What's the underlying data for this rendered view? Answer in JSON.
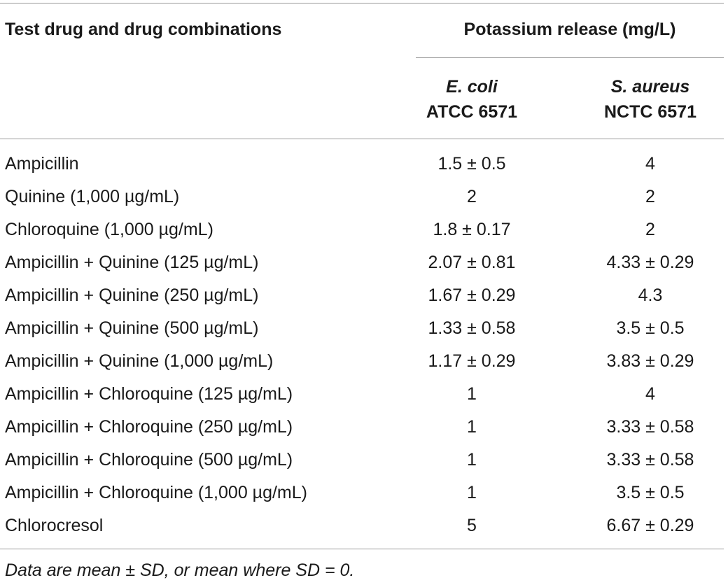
{
  "table": {
    "header": {
      "first_col": "Test drug and drug combinations",
      "group": "Potassium release (mg/L)",
      "col1_organism": "E. coli",
      "col1_strain": "ATCC 6571",
      "col2_organism": "S. aureus",
      "col2_strain": "NCTC 6571"
    },
    "rows": [
      {
        "label": "Ampicillin",
        "ecoli": "1.5 ± 0.5",
        "saureus": "4"
      },
      {
        "label": "Quinine (1,000 µg/mL)",
        "ecoli": "2",
        "saureus": "2"
      },
      {
        "label": "Chloroquine (1,000 µg/mL)",
        "ecoli": "1.8 ± 0.17",
        "saureus": "2"
      },
      {
        "label": "Ampicillin + Quinine (125 µg/mL)",
        "ecoli": "2.07 ± 0.81",
        "saureus": "4.33 ± 0.29"
      },
      {
        "label": "Ampicillin + Quinine (250 µg/mL)",
        "ecoli": "1.67 ± 0.29",
        "saureus": "4.3"
      },
      {
        "label": "Ampicillin + Quinine (500 µg/mL)",
        "ecoli": "1.33 ± 0.58",
        "saureus": "3.5 ± 0.5"
      },
      {
        "label": "Ampicillin + Quinine (1,000 µg/mL)",
        "ecoli": "1.17 ± 0.29",
        "saureus": "3.83 ± 0.29"
      },
      {
        "label": "Ampicillin + Chloroquine (125 µg/mL)",
        "ecoli": "1",
        "saureus": "4"
      },
      {
        "label": "Ampicillin + Chloroquine (250 µg/mL)",
        "ecoli": "1",
        "saureus": "3.33 ± 0.58"
      },
      {
        "label": "Ampicillin + Chloroquine (500 µg/mL)",
        "ecoli": "1",
        "saureus": "3.33 ± 0.58"
      },
      {
        "label": "Ampicillin + Chloroquine (1,000 µg/mL)",
        "ecoli": "1",
        "saureus": "3.5 ± 0.5"
      },
      {
        "label": "Chlorocresol",
        "ecoli": "5",
        "saureus": "6.67 ± 0.29"
      }
    ],
    "footnote": "Data are mean ± SD, or mean where SD = 0."
  }
}
